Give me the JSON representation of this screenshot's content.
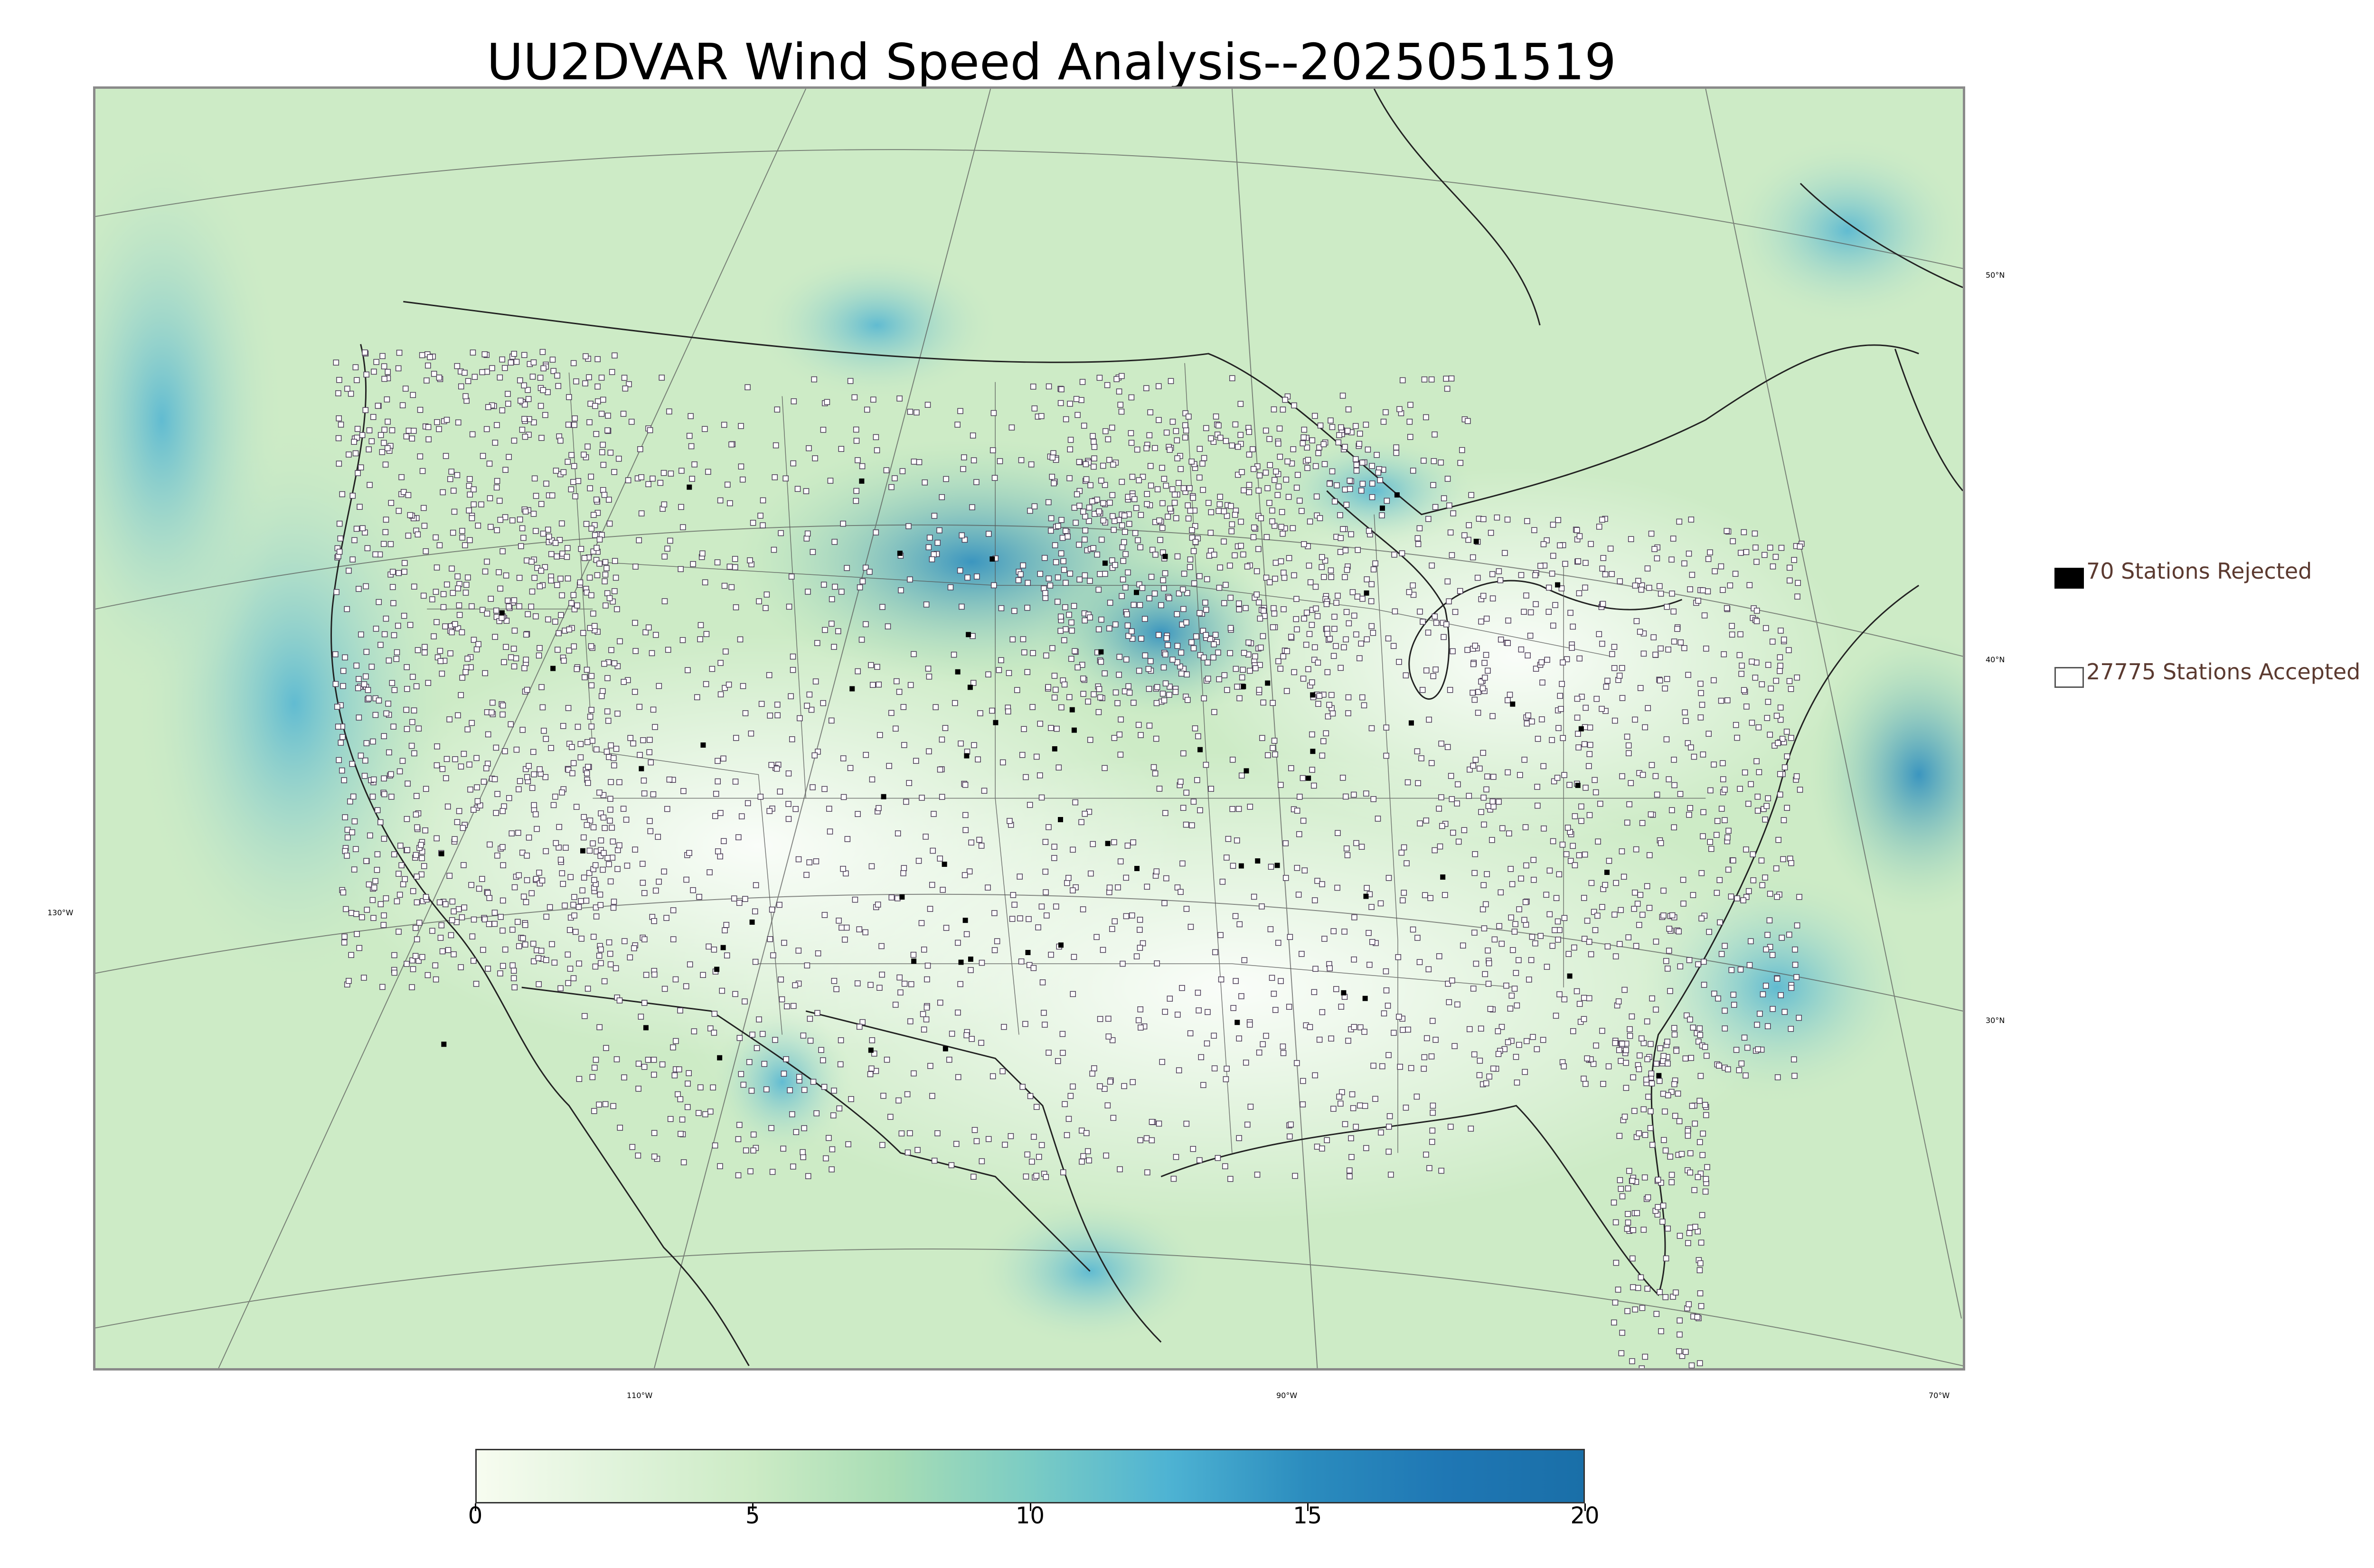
{
  "title": "UU2DVAR Wind Speed Analysis--2025051519",
  "map": {
    "lon_labels": [
      "130°W",
      "110°W",
      "90°W",
      "70°W"
    ],
    "lat_labels": [
      "50°N",
      "40°N",
      "30°N"
    ],
    "field_colormap": "GnBu",
    "colors": {
      "low": "#f7fcf0",
      "mid": "#a8ddb5",
      "high": "#2b8cbe",
      "max": "#08589e",
      "coastline": "#000000",
      "boundaries": "#444444",
      "station_outline": "#4a3b55"
    }
  },
  "legend": {
    "rejected": {
      "label": "70 Stations Rejected",
      "count": 70,
      "swatch": "#000000"
    },
    "accepted": {
      "label": "27775 Stations Accepted",
      "count": 27775,
      "swatch": "#ffffff"
    }
  },
  "colorbar": {
    "min": 0,
    "max": 20,
    "ticks": [
      "0",
      "5",
      "10",
      "15",
      "20"
    ],
    "stops": [
      "#f7fcf0",
      "#e0f3db",
      "#ccebc5",
      "#a8ddb5",
      "#7bccc4",
      "#4eb3d3",
      "#2b8cbe",
      "#1f77b4",
      "#1a6fa8"
    ]
  }
}
